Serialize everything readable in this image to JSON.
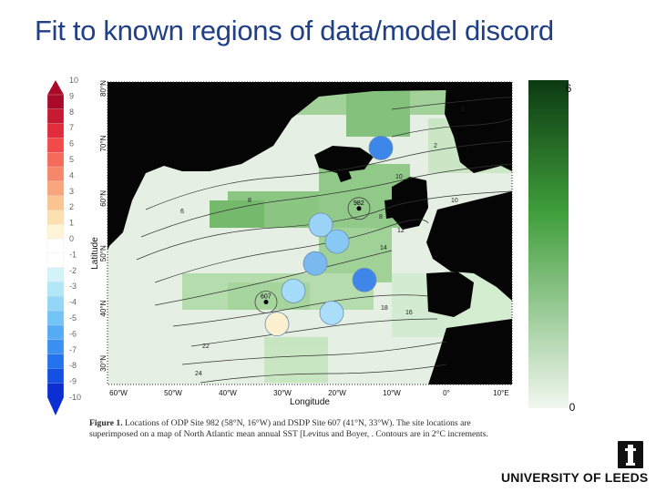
{
  "slide": {
    "title": "Fit to known regions of data/model discord"
  },
  "left_colorbar": {
    "ticks": [
      "10",
      "9",
      "8",
      "7",
      "6",
      "5",
      "4",
      "3",
      "2",
      "1",
      "0",
      "-1",
      "-2",
      "-3",
      "-4",
      "-5",
      "-6",
      "-7",
      "-8",
      "-9",
      "-10"
    ],
    "colors": [
      "#a80a27",
      "#c81a33",
      "#e22c3b",
      "#f2494a",
      "#f66a5a",
      "#f7876b",
      "#f9a67e",
      "#fbc592",
      "#fde0b0",
      "#fff4d8",
      "#ffffff",
      "#ffffff",
      "#d3f3f8",
      "#b3e6f7",
      "#94d6f6",
      "#73c3f6",
      "#55abf5",
      "#3b90f2",
      "#2472ed",
      "#1450e4",
      "#0b2fd2"
    ]
  },
  "right_colorbar": {
    "top_label": "6",
    "bottom_label": "0",
    "top_color": "#0c3a12",
    "mid_color": "#3f9e3a",
    "bottom_color": "#f2f7f0"
  },
  "map": {
    "ylabel": "Latitude",
    "xlabel": "Longitude",
    "lat_ticks": [
      "80°N",
      "70°N",
      "60°N",
      "50°N",
      "40°N",
      "30°N"
    ],
    "lon_ticks": [
      "60°W",
      "50°W",
      "40°W",
      "30°W",
      "20°W",
      "10°W",
      "0°",
      "10°E"
    ],
    "contour_labels": [
      "2",
      "2",
      "8",
      "6",
      "8",
      "10",
      "10",
      "12",
      "14",
      "16",
      "18",
      "20",
      "22",
      "24"
    ],
    "sites": [
      {
        "label": "982",
        "lon": -16,
        "lat": 58
      },
      {
        "label": "607",
        "lon": -33,
        "lat": 41
      }
    ],
    "markers": [
      {
        "lon": -12,
        "lat": 69,
        "color": "#3d86ea"
      },
      {
        "lon": -23,
        "lat": 55,
        "color": "#9bd2f7"
      },
      {
        "lon": -20,
        "lat": 52,
        "color": "#88c8f5"
      },
      {
        "lon": -24,
        "lat": 48,
        "color": "#7ab8f0"
      },
      {
        "lon": -15,
        "lat": 45,
        "color": "#3f86ea"
      },
      {
        "lon": -28,
        "lat": 43,
        "color": "#a5dcf9"
      },
      {
        "lon": -21,
        "lat": 39,
        "color": "#a9ddfa"
      },
      {
        "lon": -31,
        "lat": 37,
        "color": "#fdf0d0"
      }
    ]
  },
  "caption": {
    "figure_label": "Figure 1.",
    "text": "Locations of ODP Site 982 (58°N, 16°W) and DSDP Site 607 (41°N, 33°W). The site locations are superimposed on a map of North Atlantic mean annual SST [Levitus and Boyer, . Contours are in 2°C increments."
  },
  "logo": {
    "text": "UNIVERSITY OF LEEDS"
  }
}
